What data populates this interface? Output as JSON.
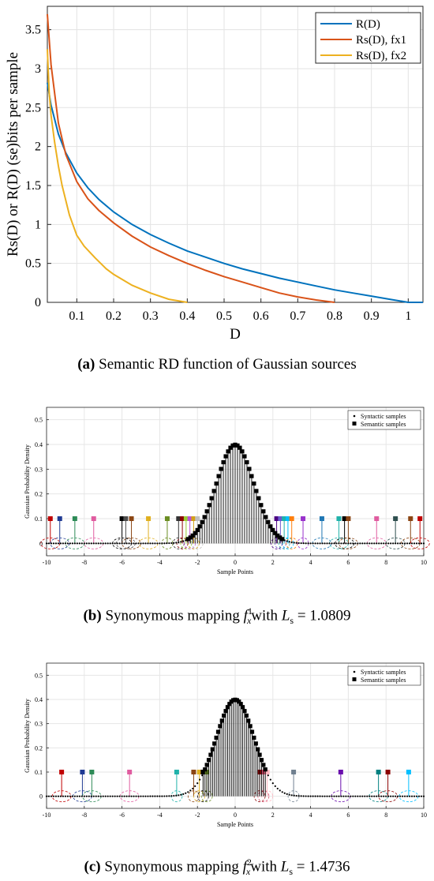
{
  "chart_data": [
    {
      "type": "line",
      "xlabel": "D",
      "ylabel": "Rs(D) or R(D) (se)bits per sample",
      "xlim": [
        0.02,
        1.04
      ],
      "ylim": [
        0,
        3.8
      ],
      "xticks": [
        0.1,
        0.2,
        0.3,
        0.4,
        0.5,
        0.6,
        0.7,
        0.8,
        0.9,
        1
      ],
      "yticks": [
        0,
        0.5,
        1,
        1.5,
        2,
        2.5,
        3,
        3.5
      ],
      "grid": true,
      "legend_position": "top-right",
      "series": [
        {
          "name": "R(D)",
          "color": "#0072bd",
          "x": [
            0.02,
            0.03,
            0.05,
            0.07,
            0.1,
            0.13,
            0.16,
            0.2,
            0.25,
            0.3,
            0.35,
            0.4,
            0.45,
            0.5,
            0.55,
            0.6,
            0.65,
            0.7,
            0.75,
            0.8,
            0.85,
            0.9,
            0.95,
            1.0,
            1.04
          ],
          "y": [
            2.82,
            2.53,
            2.16,
            1.92,
            1.66,
            1.47,
            1.32,
            1.16,
            1.0,
            0.87,
            0.76,
            0.66,
            0.58,
            0.5,
            0.43,
            0.37,
            0.31,
            0.26,
            0.21,
            0.16,
            0.12,
            0.08,
            0.04,
            0.0,
            0.0
          ]
        },
        {
          "name": "Rs(D), fx1",
          "color": "#d95319",
          "x": [
            0.02,
            0.03,
            0.05,
            0.07,
            0.1,
            0.13,
            0.16,
            0.2,
            0.25,
            0.3,
            0.35,
            0.4,
            0.45,
            0.5,
            0.55,
            0.6,
            0.65,
            0.7,
            0.75,
            0.8
          ],
          "y": [
            3.7,
            3.05,
            2.3,
            1.9,
            1.55,
            1.33,
            1.18,
            1.02,
            0.85,
            0.71,
            0.6,
            0.5,
            0.41,
            0.33,
            0.26,
            0.19,
            0.12,
            0.07,
            0.03,
            0.0
          ]
        },
        {
          "name": "Rs(D), fx2",
          "color": "#edb120",
          "x": [
            0.02,
            0.025,
            0.03,
            0.04,
            0.05,
            0.06,
            0.08,
            0.1,
            0.12,
            0.15,
            0.18,
            0.2,
            0.25,
            0.3,
            0.35,
            0.4
          ],
          "y": [
            3.25,
            2.7,
            2.4,
            2.05,
            1.75,
            1.5,
            1.12,
            0.86,
            0.72,
            0.57,
            0.43,
            0.36,
            0.22,
            0.12,
            0.04,
            0.0
          ]
        }
      ]
    },
    {
      "type": "scatter",
      "xlabel": "Sample Points",
      "ylabel": "Gaussian Probability Density",
      "xlim": [
        -10,
        10
      ],
      "ylim": [
        -0.05,
        0.55
      ],
      "xticks": [
        -10,
        -8,
        -6,
        -4,
        -2,
        0,
        2,
        4,
        6,
        8,
        10
      ],
      "yticks": [
        0,
        0.1,
        0.2,
        0.3,
        0.4,
        0.5
      ],
      "grid": true,
      "legend_position": "top-right",
      "legend": [
        "Syntactic samples",
        "Semantic samples"
      ],
      "syntactic_samples": {
        "x_range": [
          -10,
          10
        ],
        "count": 161,
        "density": "gaussian N(0,1)"
      },
      "semantic_samples": {
        "x_range": [
          -2.5,
          2.5
        ],
        "count": 41,
        "density": "gaussian N(0,1)"
      },
      "mapping_markers": {
        "x": [
          -9.8,
          -9.3,
          -8.5,
          -7.5,
          -6.0,
          -5.8,
          -5.5,
          -4.6,
          -3.6,
          -3.0,
          -2.8,
          -2.6,
          -2.4,
          -2.2,
          -2.0,
          2.2,
          2.4,
          2.6,
          2.8,
          3.0,
          3.6,
          4.6,
          5.5,
          5.8,
          6.0,
          7.5,
          8.5,
          9.3,
          9.8
        ],
        "value": 0.1,
        "colors": [
          "#c00000",
          "#1f3a93",
          "#2e8b57",
          "#e05ca0",
          "#000000",
          "#4d4d4d",
          "#8b4513",
          "#e0b020",
          "#6b8e23",
          "#333333",
          "#8b0000",
          "#9acd32",
          "#ba55d3",
          "#d4a017",
          "#c0c0c0",
          "#4b0082",
          "#6a5acd",
          "#20b2aa",
          "#00bfff",
          "#ff7f0e",
          "#9932cc",
          "#1f77b4",
          "#20b2aa",
          "#000000",
          "#8b4513",
          "#e05ca0",
          "#2f4f4f",
          "#8b4513",
          "#c00000"
        ]
      }
    },
    {
      "type": "scatter",
      "xlabel": "Sample Points",
      "ylabel": "Gaussian Probability Density",
      "xlim": [
        -10,
        10
      ],
      "ylim": [
        -0.05,
        0.55
      ],
      "xticks": [
        -10,
        -8,
        -6,
        -4,
        -2,
        0,
        2,
        4,
        6,
        8,
        10
      ],
      "yticks": [
        0,
        0.1,
        0.2,
        0.3,
        0.4,
        0.5
      ],
      "grid": true,
      "legend_position": "top-right",
      "legend": [
        "Syntactic samples",
        "Semantic samples"
      ],
      "syntactic_samples": {
        "x_range": [
          -10,
          10
        ],
        "count": 161,
        "density": "gaussian N(0,1)"
      },
      "semantic_samples": {
        "x_range": [
          -1.6,
          1.6
        ],
        "count": 33,
        "density": "gaussian N(0,1)"
      },
      "mapping_markers": {
        "x": [
          -9.2,
          -8.1,
          -7.6,
          -5.6,
          -3.1,
          -2.2,
          -1.9,
          -1.7,
          -1.5,
          1.3,
          1.5,
          1.7,
          3.1,
          5.6,
          7.6,
          8.1,
          9.2
        ],
        "value": 0.1,
        "colors": [
          "#c00000",
          "#1f3a93",
          "#2e8b57",
          "#e05ca0",
          "#20b2aa",
          "#8b4513",
          "#e0b020",
          "#000000",
          "#6b8e23",
          "#8b0000",
          "#d64a6b",
          "#ffb6c1",
          "#708090",
          "#6a0dad",
          "#008080",
          "#8b0000",
          "#00bfff"
        ]
      }
    }
  ],
  "captions": {
    "a": {
      "label": "(a)",
      "text": " Semantic RD function of Gaussian sources"
    },
    "b": {
      "label": "(b)",
      "text_before": " Synonymous mapping ",
      "symbol": "f",
      "sup": "1",
      "sub": "x",
      "text_after": "with ",
      "lsym": "L",
      "lsub": "s",
      "value": " = 1.0809"
    },
    "c": {
      "label": "(c)",
      "text_before": " Synonymous mapping ",
      "symbol": "f",
      "sup": "2",
      "sub": "x",
      "text_after": "with ",
      "lsym": "L",
      "lsub": "s",
      "value": " = 1.4736"
    }
  }
}
